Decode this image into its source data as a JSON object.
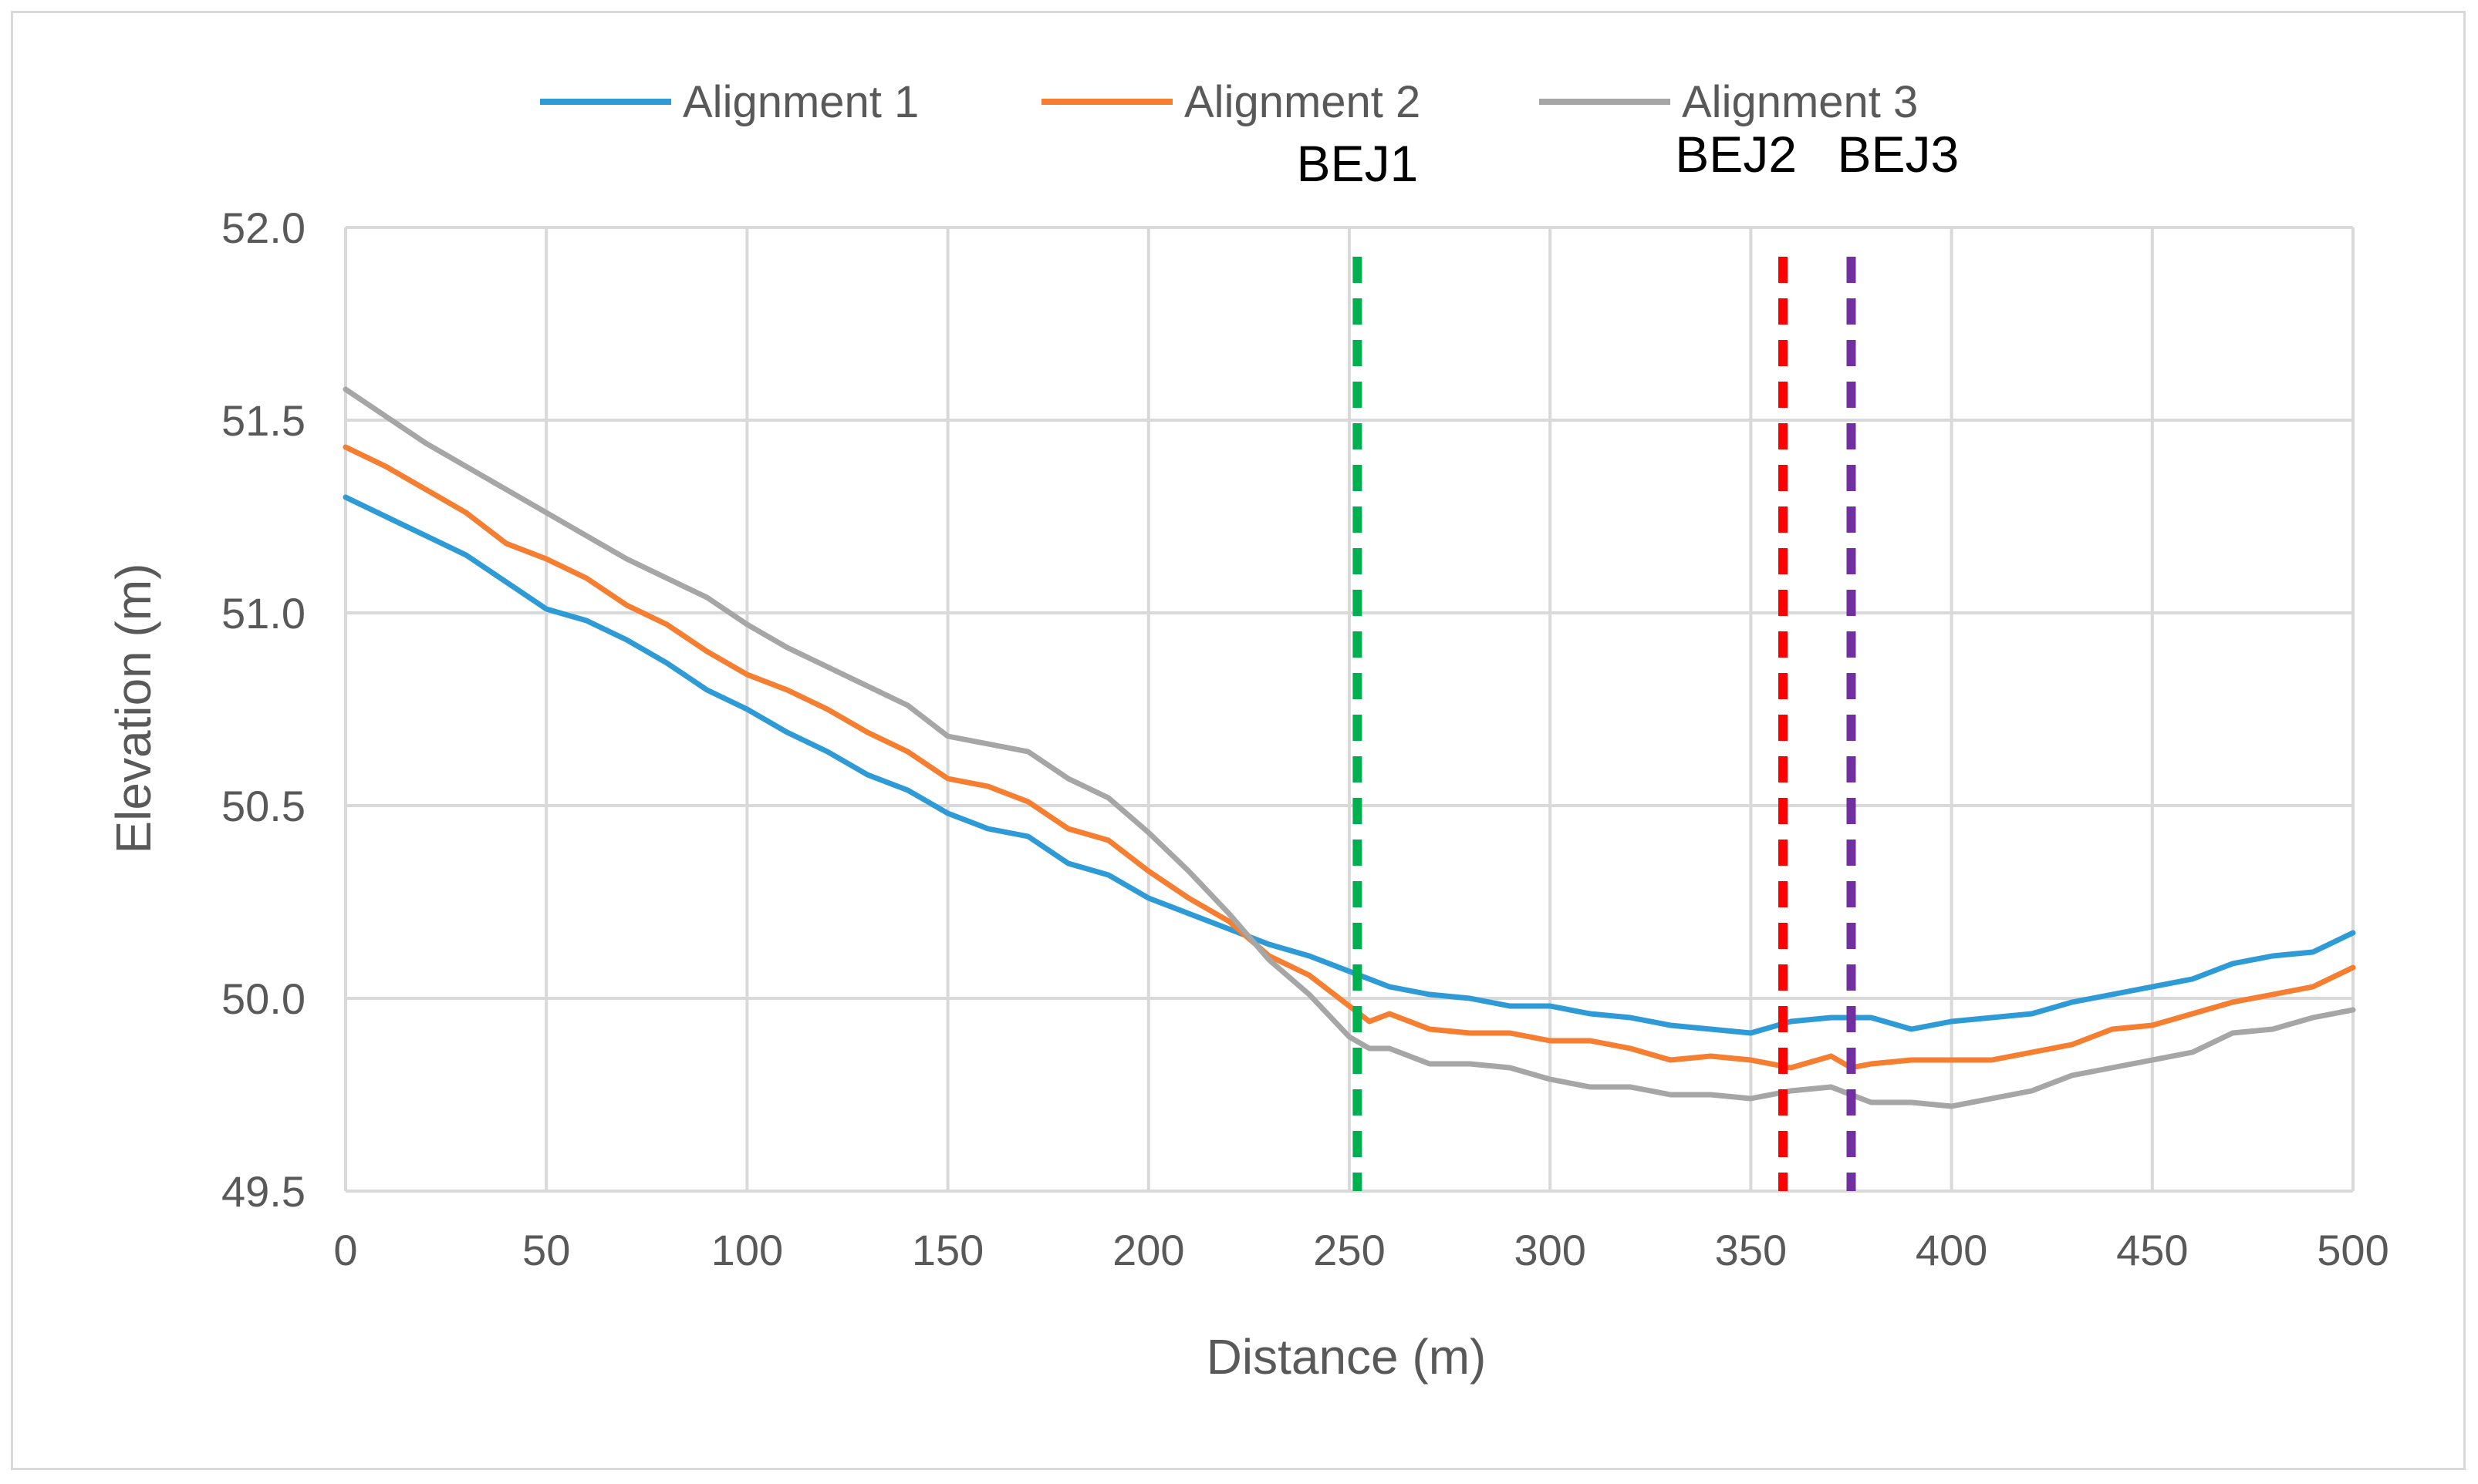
{
  "chart_data": {
    "type": "line",
    "title": "",
    "xlabel": "Distance (m)",
    "ylabel": "Elevation (m)",
    "xlim": [
      0,
      500
    ],
    "ylim": [
      49.5,
      52.0
    ],
    "x_ticks": [
      "0",
      "50",
      "100",
      "150",
      "200",
      "250",
      "300",
      "350",
      "400",
      "450",
      "500"
    ],
    "y_ticks": [
      "49.5",
      "50.0",
      "50.5",
      "51.0",
      "51.5",
      "52.0"
    ],
    "grid": true,
    "legend_position": "top-center",
    "series": [
      {
        "name": "Alignment 1",
        "color": "#2e9bd6",
        "x": [
          0,
          10,
          20,
          30,
          40,
          50,
          60,
          70,
          80,
          90,
          100,
          110,
          120,
          130,
          140,
          150,
          160,
          170,
          180,
          190,
          200,
          210,
          220,
          230,
          240,
          250,
          260,
          270,
          280,
          290,
          300,
          310,
          320,
          330,
          340,
          350,
          360,
          370,
          380,
          390,
          400,
          410,
          420,
          430,
          440,
          450,
          460,
          470,
          480,
          490,
          500
        ],
        "y": [
          51.3,
          51.25,
          51.2,
          51.15,
          51.08,
          51.01,
          50.98,
          50.93,
          50.87,
          50.8,
          50.75,
          50.69,
          50.64,
          50.58,
          50.54,
          50.48,
          50.44,
          50.42,
          50.35,
          50.32,
          50.26,
          50.22,
          50.18,
          50.14,
          50.11,
          50.07,
          50.03,
          50.01,
          50.0,
          49.98,
          49.98,
          49.96,
          49.95,
          49.93,
          49.92,
          49.91,
          49.94,
          49.95,
          49.95,
          49.92,
          49.94,
          49.95,
          49.96,
          49.99,
          50.01,
          50.03,
          50.05,
          50.09,
          50.11,
          50.12,
          50.17
        ]
      },
      {
        "name": "Alignment 2",
        "color": "#f57e31",
        "x": [
          0,
          10,
          20,
          30,
          40,
          50,
          60,
          70,
          80,
          90,
          100,
          110,
          120,
          130,
          140,
          150,
          160,
          170,
          180,
          190,
          200,
          210,
          220,
          230,
          240,
          250,
          255,
          260,
          270,
          280,
          290,
          300,
          310,
          320,
          330,
          340,
          350,
          360,
          370,
          375,
          380,
          390,
          400,
          410,
          420,
          430,
          440,
          450,
          460,
          470,
          480,
          490,
          500
        ],
        "y": [
          51.43,
          51.38,
          51.32,
          51.26,
          51.18,
          51.14,
          51.09,
          51.02,
          50.97,
          50.9,
          50.84,
          50.8,
          50.75,
          50.69,
          50.64,
          50.57,
          50.55,
          50.51,
          50.44,
          50.41,
          50.33,
          50.26,
          50.2,
          50.11,
          50.06,
          49.98,
          49.94,
          49.96,
          49.92,
          49.91,
          49.91,
          49.89,
          49.89,
          49.87,
          49.84,
          49.85,
          49.84,
          49.82,
          49.85,
          49.82,
          49.83,
          49.84,
          49.84,
          49.84,
          49.86,
          49.88,
          49.92,
          49.93,
          49.96,
          49.99,
          50.01,
          50.03,
          50.08
        ]
      },
      {
        "name": "Alignment 3",
        "color": "#a6a6a6",
        "x": [
          0,
          10,
          20,
          30,
          40,
          50,
          60,
          70,
          80,
          90,
          100,
          110,
          120,
          130,
          140,
          150,
          160,
          170,
          180,
          190,
          200,
          210,
          220,
          230,
          240,
          250,
          255,
          260,
          270,
          280,
          290,
          300,
          310,
          320,
          330,
          340,
          350,
          360,
          370,
          375,
          380,
          390,
          400,
          410,
          420,
          430,
          440,
          450,
          460,
          470,
          480,
          490,
          500
        ],
        "y": [
          51.58,
          51.51,
          51.44,
          51.38,
          51.32,
          51.26,
          51.2,
          51.14,
          51.09,
          51.04,
          50.97,
          50.91,
          50.86,
          50.81,
          50.76,
          50.68,
          50.66,
          50.64,
          50.57,
          50.52,
          50.43,
          50.33,
          50.22,
          50.1,
          50.01,
          49.9,
          49.87,
          49.87,
          49.83,
          49.83,
          49.82,
          49.79,
          49.77,
          49.77,
          49.75,
          49.75,
          49.74,
          49.76,
          49.77,
          49.75,
          49.73,
          49.73,
          49.72,
          49.74,
          49.76,
          49.8,
          49.82,
          49.84,
          49.86,
          49.91,
          49.92,
          49.95,
          49.97
        ]
      }
    ],
    "markers": [
      {
        "label": "BEJ1",
        "x": 252,
        "color": "#00b050"
      },
      {
        "label": "BEJ2",
        "x": 358,
        "color": "#ff0000"
      },
      {
        "label": "BEJ3",
        "x": 375,
        "color": "#7030a0"
      }
    ]
  }
}
